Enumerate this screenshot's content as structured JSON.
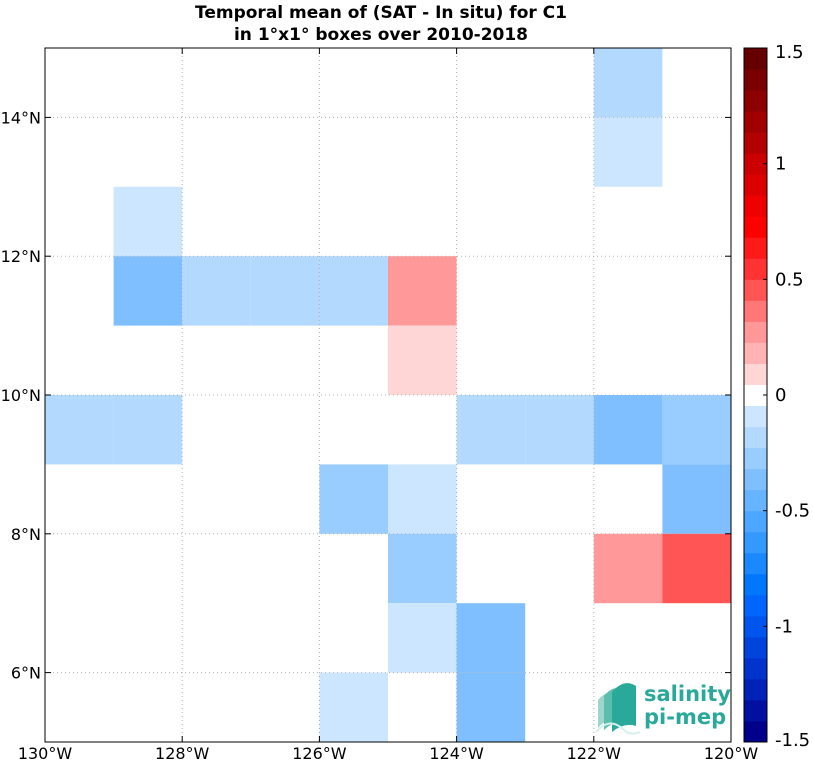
{
  "chart_data": {
    "type": "heatmap",
    "title": "Temporal mean of (SAT - In situ) for C1",
    "subtitle": "in 1°x1° boxes over 2010-2018",
    "x_ticks": [
      {
        "value": -130,
        "label": "130°W"
      },
      {
        "value": -128,
        "label": "128°W"
      },
      {
        "value": -126,
        "label": "126°W"
      },
      {
        "value": -124,
        "label": "124°W"
      },
      {
        "value": -122,
        "label": "122°W"
      },
      {
        "value": -120,
        "label": "120°W"
      }
    ],
    "y_ticks": [
      {
        "value": 6,
        "label": "6°N"
      },
      {
        "value": 8,
        "label": "8°N"
      },
      {
        "value": 10,
        "label": "10°N"
      },
      {
        "value": 12,
        "label": "12°N"
      },
      {
        "value": 14,
        "label": "14°N"
      }
    ],
    "xlim": [
      -130,
      -120
    ],
    "ylim": [
      5,
      15
    ],
    "grid": true,
    "colorbar": {
      "range": [
        -1.5,
        1.5
      ],
      "ticks": [
        {
          "value": 1.5,
          "label": "1.5"
        },
        {
          "value": 1,
          "label": "1"
        },
        {
          "value": 0.5,
          "label": "0.5"
        },
        {
          "value": 0,
          "label": "0"
        },
        {
          "value": -0.5,
          "label": "-0.5"
        },
        {
          "value": -1,
          "label": "-1"
        },
        {
          "value": -1.5,
          "label": "-1.5"
        }
      ],
      "colors": [
        "#00008a",
        "#0011a0",
        "#0022b6",
        "#0033cc",
        "#0044dd",
        "#0055ee",
        "#0066ff",
        "#0077ff",
        "#1a88ff",
        "#3399ff",
        "#4da6ff",
        "#66b3ff",
        "#80bfff",
        "#99ccff",
        "#b3d9ff",
        "#cce6ff",
        "#ffffff",
        "#ffd6d6",
        "#ffb3b3",
        "#ff9999",
        "#ff7777",
        "#ff5555",
        "#ff3333",
        "#ff1a1a",
        "#ff0000",
        "#ee0000",
        "#dd0000",
        "#cc0000",
        "#b30000",
        "#a00000",
        "#8c0000",
        "#7a0000",
        "#660000"
      ]
    },
    "cells": [
      {
        "lon": -122,
        "lat": 14,
        "value": -0.2
      },
      {
        "lon": -122,
        "lat": 13,
        "value": -0.1
      },
      {
        "lon": -129,
        "lat": 12,
        "value": -0.1
      },
      {
        "lon": -129,
        "lat": 11,
        "value": -0.35
      },
      {
        "lon": -128,
        "lat": 11,
        "value": -0.2
      },
      {
        "lon": -127,
        "lat": 11,
        "value": -0.2
      },
      {
        "lon": -126,
        "lat": 11,
        "value": -0.2
      },
      {
        "lon": -125,
        "lat": 11,
        "value": 0.25
      },
      {
        "lon": -125,
        "lat": 10,
        "value": 0.1
      },
      {
        "lon": -130,
        "lat": 9,
        "value": -0.15
      },
      {
        "lon": -129,
        "lat": 9,
        "value": -0.15
      },
      {
        "lon": -124,
        "lat": 9,
        "value": -0.15
      },
      {
        "lon": -123,
        "lat": 9,
        "value": -0.15
      },
      {
        "lon": -122,
        "lat": 9,
        "value": -0.4
      },
      {
        "lon": -121,
        "lat": 9,
        "value": -0.3
      },
      {
        "lon": -126,
        "lat": 8,
        "value": -0.25
      },
      {
        "lon": -125,
        "lat": 8,
        "value": -0.1
      },
      {
        "lon": -121,
        "lat": 8,
        "value": -0.4
      },
      {
        "lon": -125,
        "lat": 7,
        "value": -0.25
      },
      {
        "lon": -122,
        "lat": 7,
        "value": 0.25
      },
      {
        "lon": -121,
        "lat": 7,
        "value": 0.45
      },
      {
        "lon": -125,
        "lat": 6,
        "value": -0.1
      },
      {
        "lon": -124,
        "lat": 6,
        "value": -0.4
      },
      {
        "lon": -126,
        "lat": 5,
        "value": -0.1
      },
      {
        "lon": -124,
        "lat": 5,
        "value": -0.4
      }
    ]
  },
  "logo": {
    "line1": "salinity",
    "line2": "pi-mep",
    "color": "#2aa89a"
  }
}
